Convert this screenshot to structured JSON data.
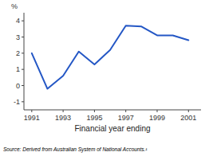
{
  "chart_data": {
    "type": "line",
    "x": [
      1991,
      1992,
      1993,
      1994,
      1995,
      1996,
      1997,
      1998,
      1999,
      2000,
      2001
    ],
    "values": [
      2.0,
      -0.2,
      0.6,
      2.1,
      1.3,
      2.2,
      3.7,
      3.65,
      3.1,
      3.1,
      2.8
    ],
    "color": "#2457c5",
    "xlim": [
      1990.5,
      2001.8
    ],
    "ylim": [
      -1.5,
      4.5
    ],
    "xticks": [
      1991,
      1993,
      1995,
      1997,
      1999,
      2001
    ],
    "yticks": [
      -1,
      0,
      1,
      2,
      3,
      4
    ],
    "xlabel": "Financial year ending",
    "ylabel": "%",
    "annotations": [
      "Source: Derived from Australian System of National Accounts.¹"
    ]
  }
}
